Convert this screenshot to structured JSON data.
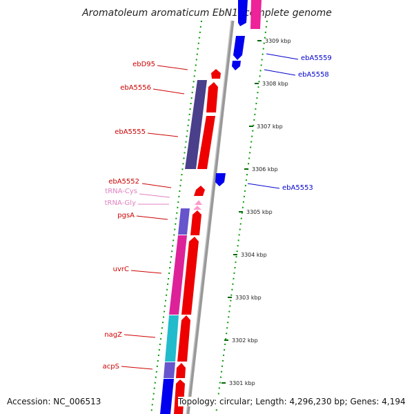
{
  "title": "Aromatoleum aromaticum EbN1, complete genome",
  "accession": "Accession: NC_006513",
  "topology": "Topology: circular; Length: 4,296,230 bp; Genes: 4,194",
  "colors": {
    "label_forward": "#cc0000",
    "label_reverse": "#0000cc",
    "label_trna": "#e080c0",
    "tick_green": "#006600",
    "backbone": "#888888"
  },
  "ticks": [
    {
      "label": "3309 kbp"
    },
    {
      "label": "3308 kbp"
    },
    {
      "label": "3307 kbp"
    },
    {
      "label": "3306 kbp"
    },
    {
      "label": "3305 kbp"
    },
    {
      "label": "3304 kbp"
    },
    {
      "label": "3303 kbp"
    },
    {
      "label": "3302 kbp"
    },
    {
      "label": "3301 kbp"
    }
  ],
  "gene_labels": [
    {
      "name": "ebD95",
      "kind": "forward"
    },
    {
      "name": "ebA5556",
      "kind": "forward"
    },
    {
      "name": "ebA5555",
      "kind": "forward"
    },
    {
      "name": "ebA5552",
      "kind": "forward"
    },
    {
      "name": "tRNA-Cys",
      "kind": "trna"
    },
    {
      "name": "tRNA-Gly",
      "kind": "trna"
    },
    {
      "name": "pgsA",
      "kind": "forward"
    },
    {
      "name": "uvrC",
      "kind": "forward"
    },
    {
      "name": "nagZ",
      "kind": "forward"
    },
    {
      "name": "acpS",
      "kind": "forward"
    },
    {
      "name": "ebA5559",
      "kind": "reverse"
    },
    {
      "name": "ebA5558",
      "kind": "reverse"
    },
    {
      "name": "ebA5553",
      "kind": "reverse"
    }
  ]
}
